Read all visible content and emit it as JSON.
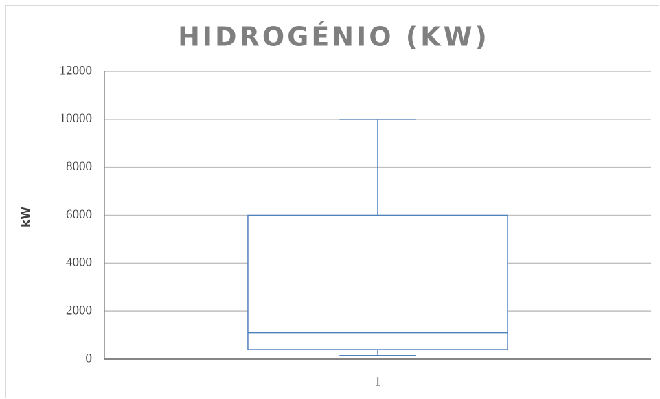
{
  "chart_data": {
    "type": "box",
    "title": "HIDROGÉNIO (KW)",
    "y_label": "kW",
    "categories": [
      "1"
    ],
    "stats": {
      "min": [
        150
      ],
      "q1": [
        400
      ],
      "median": [
        1100
      ],
      "q3": [
        6000
      ],
      "max": [
        10000
      ]
    },
    "color": "#4f81bd",
    "ylim": [
      0,
      12000
    ],
    "yticks": [
      0,
      2000,
      4000,
      6000,
      8000,
      10000,
      12000
    ],
    "grid": true
  }
}
